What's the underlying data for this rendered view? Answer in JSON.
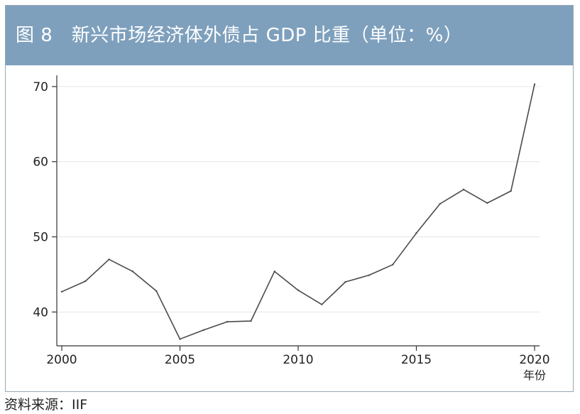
{
  "colors": {
    "title_bar": "#7ea0bd",
    "title_text": "#ffffff",
    "line": "#4a4a4a",
    "axis": "#333333",
    "grid": "#e6e6e6",
    "frame": "#9aa9b5"
  },
  "header": {
    "title": "图 8　新兴市场经济体外债占 GDP 比重（单位：%）"
  },
  "source": "资料来源：IIF",
  "chart_data": {
    "type": "line",
    "title": "图 8　新兴市场经济体外债占 GDP 比重（单位：%）",
    "xlabel": "年份",
    "ylabel": "",
    "xlim": [
      2000,
      2020
    ],
    "ylim": [
      35.5,
      71.5
    ],
    "grid": true,
    "x_ticks": [
      2000,
      2005,
      2010,
      2015,
      2020
    ],
    "y_ticks": [
      40,
      50,
      60,
      70
    ],
    "x": [
      2000,
      2001,
      2002,
      2003,
      2004,
      2005,
      2006,
      2007,
      2008,
      2009,
      2010,
      2011,
      2012,
      2013,
      2014,
      2015,
      2016,
      2017,
      2018,
      2019,
      2020
    ],
    "values": [
      42.7,
      44.1,
      47.0,
      45.4,
      42.8,
      36.4,
      37.6,
      38.7,
      38.8,
      45.4,
      42.9,
      41.0,
      44.0,
      44.9,
      46.3,
      50.5,
      54.4,
      56.3,
      54.5,
      56.1,
      70.3
    ]
  }
}
